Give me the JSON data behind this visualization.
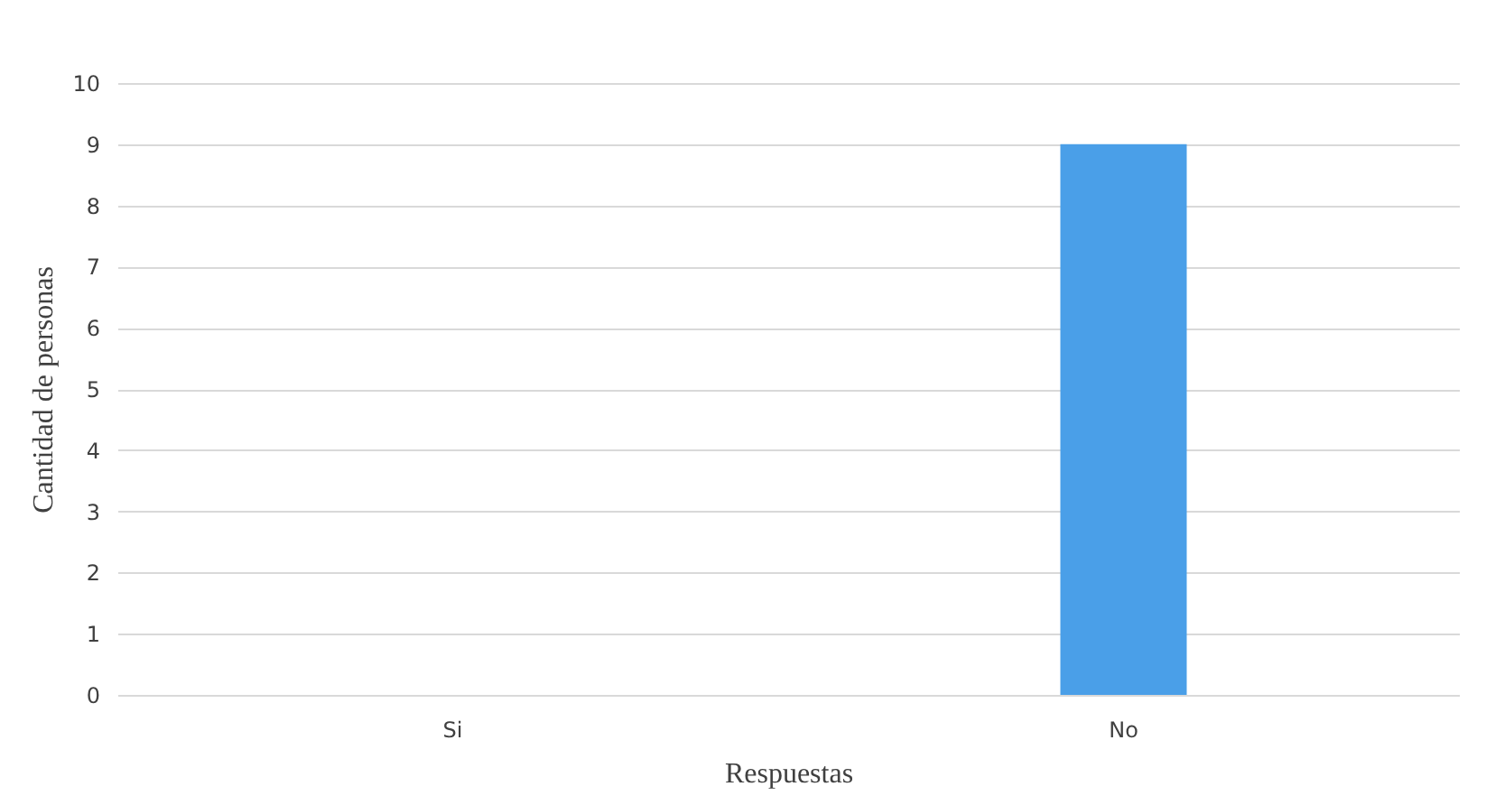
{
  "chart_data": {
    "type": "bar",
    "xlabel": "Respuestas",
    "ylabel": "Cantidad de personas",
    "categories": [
      "Si",
      "No"
    ],
    "values": [
      0,
      9
    ],
    "color": "#4a9fe8",
    "ylim": [
      0,
      10
    ],
    "yticks": [
      0,
      1,
      2,
      3,
      4,
      5,
      6,
      7,
      8,
      9,
      10
    ],
    "grid": "y"
  }
}
